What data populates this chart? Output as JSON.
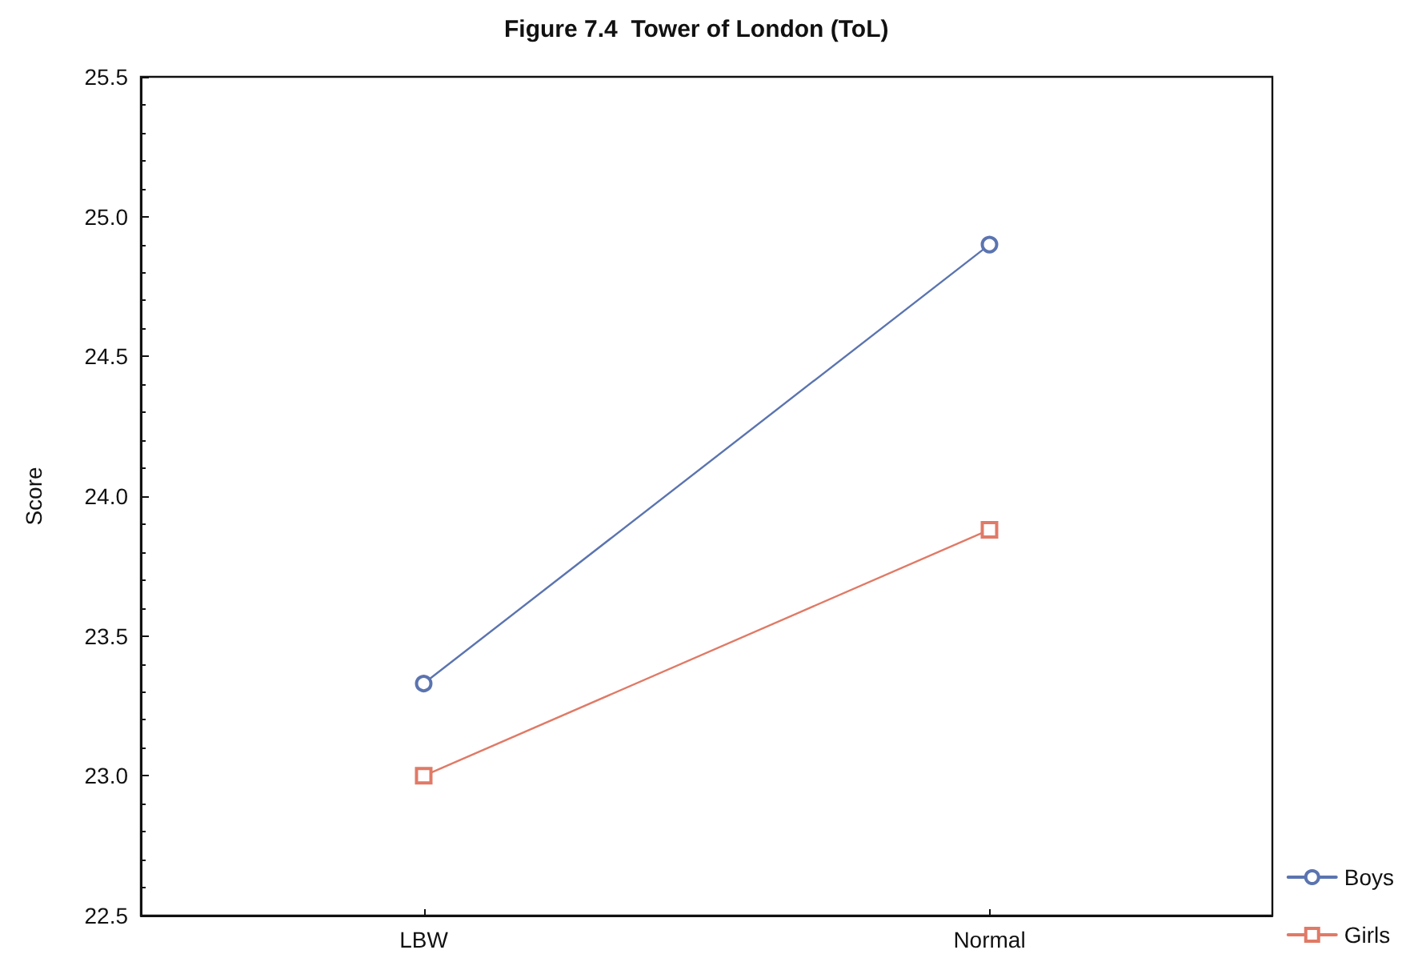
{
  "chart_data": {
    "type": "line",
    "title": "Figure 7.4  Tower of London (ToL)",
    "ylabel": "Score",
    "categories": [
      "LBW",
      "Normal"
    ],
    "series": [
      {
        "name": "Boys",
        "color": "#5b74b0",
        "values": [
          23.33,
          24.9
        ],
        "marker": "circle"
      },
      {
        "name": "Girls",
        "color": "#e07a66",
        "values": [
          23.0,
          23.88
        ],
        "marker": "square"
      }
    ],
    "ylim": [
      22.5,
      25.5
    ],
    "yticks": [
      22.5,
      {
        "value": 23,
        "label": "23.0"
      },
      23.5,
      {
        "value": 24,
        "label": "24.0"
      },
      24.5,
      {
        "value": 25,
        "label": "25.0"
      },
      25.5
    ],
    "grid": false,
    "legend": "bottom right",
    "line_style": "solid"
  }
}
